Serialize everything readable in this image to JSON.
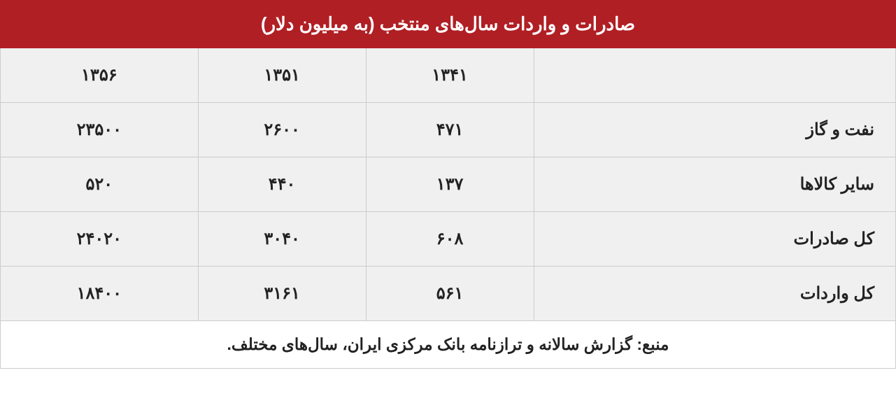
{
  "table": {
    "title": "صادرات و واردات سال‌های منتخب (به میلیون دلار)",
    "columns": [
      "۱۳۴۱",
      "۱۳۵۱",
      "۱۳۵۶"
    ],
    "rows": [
      {
        "label": "نفت و گاز",
        "values": [
          "۴۷۱",
          "۲۶۰۰",
          "۲۳۵۰۰"
        ]
      },
      {
        "label": "سایر کالاها",
        "values": [
          "۱۳۷",
          "۴۴۰",
          "۵۲۰"
        ]
      },
      {
        "label": "کل صادرات",
        "values": [
          "۶۰۸",
          "۳۰۴۰",
          "۲۴۰۲۰"
        ]
      },
      {
        "label": "کل واردات",
        "values": [
          "۵۶۱",
          "۳۱۶۱",
          "۱۸۴۰۰"
        ]
      }
    ],
    "source": "منبع: گزارش سالانه و ترازنامه بانک مرکزی ایران، سال‌های مختلف.",
    "colors": {
      "header_bg": "#b01f24",
      "header_text": "#ffffff",
      "cell_bg": "#f0f0f0",
      "source_bg": "#ffffff",
      "border": "#cccccc",
      "text": "#222222"
    },
    "layout": {
      "col_widths_pct": [
        25,
        25,
        25,
        25
      ],
      "title_fontsize": 26,
      "cell_fontsize": 24,
      "source_fontsize": 23
    }
  }
}
